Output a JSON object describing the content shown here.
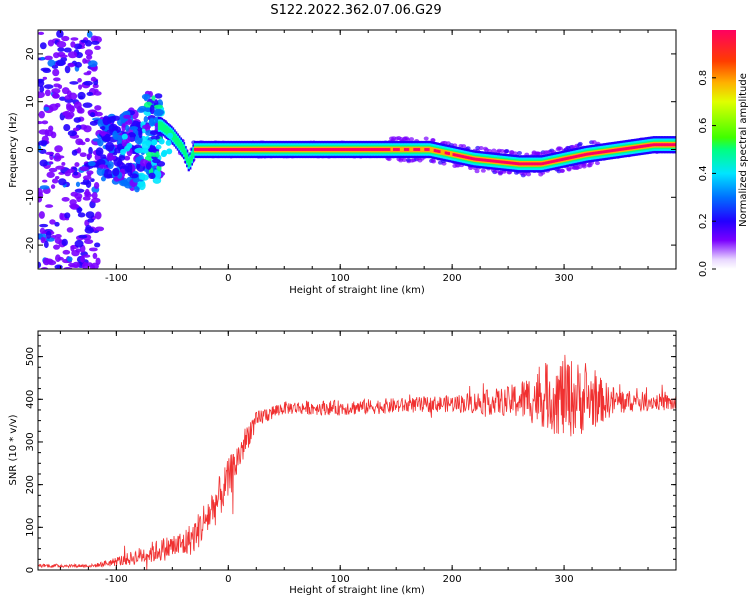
{
  "title": "S122.2022.362.07.06.G29",
  "colors": {
    "snr_line": "#f03030",
    "colormap": [
      "#ffffff",
      "#e8d6ff",
      "#7a00ff",
      "#2200ff",
      "#0070ff",
      "#00e5ff",
      "#00ff80",
      "#40ff00",
      "#e0ff00",
      "#ffb000",
      "#ff3c00",
      "#ff0060"
    ]
  },
  "chart_data": [
    {
      "type": "heatmap",
      "name": "spectrogram",
      "xlabel": "Height of straight line (km)",
      "ylabel": "Frequency (Hz)",
      "xlim": [
        -170,
        400
      ],
      "ylim": [
        -25,
        25
      ],
      "x_ticks": [
        -100,
        0,
        100,
        200,
        300
      ],
      "y_ticks": [
        -20,
        -10,
        0,
        10,
        20
      ],
      "colorbar": {
        "label": "Normalized spectral amplitude",
        "range": [
          0.0,
          1.0
        ],
        "ticks": [
          0.0,
          0.2,
          0.4,
          0.6,
          0.8
        ]
      },
      "ridge": {
        "x": [
          -60,
          -50,
          -40,
          -35,
          -30,
          -20,
          0,
          50,
          100,
          140,
          180,
          200,
          220,
          240,
          260,
          280,
          300,
          320,
          350,
          380,
          400
        ],
        "freq_hz": [
          5,
          3,
          0,
          -3,
          0,
          0,
          0,
          0,
          0,
          0,
          0,
          -1,
          -2,
          -2.5,
          -3,
          -3,
          -2,
          -1,
          0,
          1,
          1
        ]
      }
    },
    {
      "type": "line",
      "name": "snr",
      "xlabel": "Height of straight line (km)",
      "ylabel": "SNR (10 * v/v)",
      "xlim": [
        -170,
        400
      ],
      "ylim": [
        0,
        560
      ],
      "x_ticks": [
        -100,
        0,
        100,
        200,
        300
      ],
      "y_ticks": [
        0,
        100,
        200,
        300,
        400,
        500
      ],
      "series": [
        {
          "x": [
            -170,
            -120,
            -90,
            -70,
            -50,
            -40,
            -30,
            -20,
            -10,
            0,
            10,
            20,
            30,
            50,
            100,
            150,
            200,
            250,
            280,
            300,
            320,
            340,
            360,
            380,
            400
          ],
          "y": [
            10,
            10,
            25,
            40,
            55,
            60,
            80,
            120,
            160,
            210,
            270,
            330,
            360,
            380,
            380,
            385,
            390,
            395,
            405,
            405,
            400,
            395,
            395,
            395,
            390
          ],
          "noise": [
            4,
            4,
            15,
            25,
            30,
            35,
            40,
            50,
            50,
            50,
            40,
            30,
            20,
            15,
            18,
            18,
            20,
            35,
            70,
            100,
            80,
            40,
            25,
            20,
            20
          ]
        }
      ]
    }
  ]
}
